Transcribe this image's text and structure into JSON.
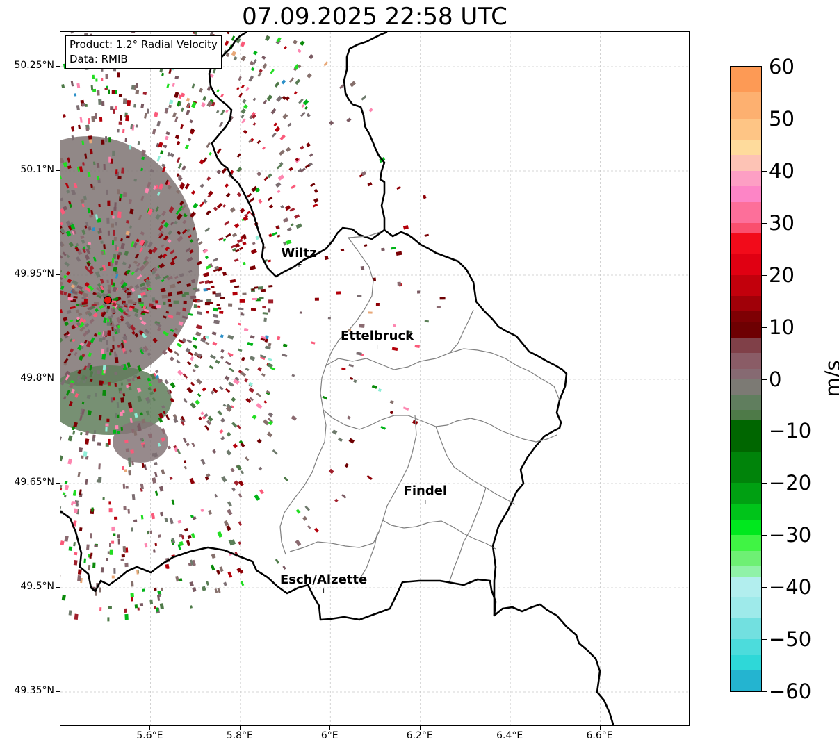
{
  "title": "07.09.2025 22:58 UTC",
  "info": {
    "product": "Product: 1.2° Radial Velocity",
    "source": "Data: RMIB"
  },
  "axes": {
    "lat_labels": [
      "50.25°N",
      "50.1°N",
      "49.95°N",
      "49.8°N",
      "49.65°N",
      "49.5°N",
      "49.35°N"
    ],
    "lon_labels": [
      "5.6°E",
      "5.8°E",
      "6°E",
      "6.2°E",
      "6.4°E",
      "6.6°E"
    ],
    "lat_range": [
      49.3,
      50.3
    ],
    "lon_range": [
      5.4,
      6.8
    ],
    "gridlines": true
  },
  "cities": [
    {
      "name": "Wiltz",
      "lon": 5.93,
      "lat": 49.966
    },
    {
      "name": "Ettelbruck",
      "lon": 6.104,
      "lat": 49.847
    },
    {
      "name": "Findel",
      "lon": 6.211,
      "lat": 49.624
    },
    {
      "name": "Esch/Alzette",
      "lon": 5.985,
      "lat": 49.496
    }
  ],
  "radar_site": {
    "lon": 5.505,
    "lat": 49.914,
    "color": "#e8120e"
  },
  "colorbar": {
    "unit": "m/s",
    "min": -60,
    "max": 60,
    "labels": [
      "60",
      "50",
      "40",
      "30",
      "20",
      "10",
      "0",
      "−10",
      "−20",
      "−30",
      "−40",
      "−50",
      "−60"
    ]
  }
}
